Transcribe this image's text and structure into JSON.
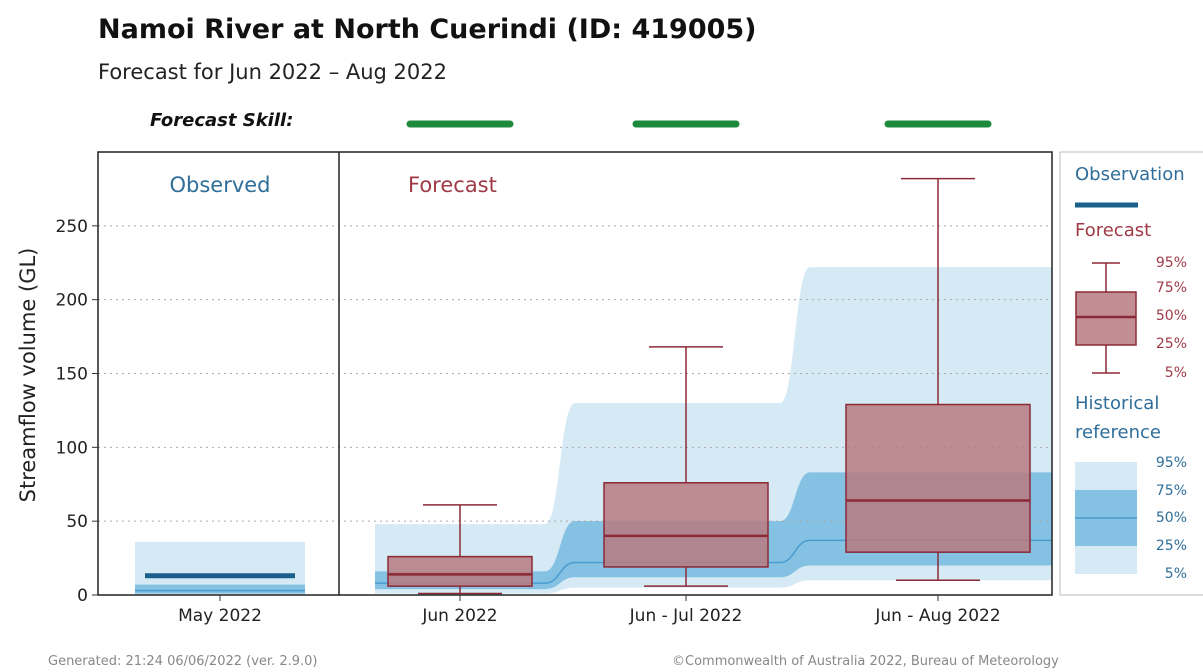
{
  "header": {
    "title": "Namoi River at North Cuerindi (ID: 419005)",
    "subtitle": "Forecast for Jun 2022 – Aug 2022",
    "skill_label": "Forecast Skill:"
  },
  "footer": {
    "generated": "Generated: 21:24 06/06/2022 (ver. 2.9.0)",
    "copyright": "©Commonwealth of Australia 2022, Bureau of Meteorology"
  },
  "colors": {
    "skill": "#1e8a3c",
    "observation": "#1b5f8c",
    "forecast_fill": "#b97a80",
    "forecast_stroke": "#8b2a36",
    "hist_light": "#d6eaf5",
    "hist_mid": "#84c1e3",
    "hist_line": "#4a9ccf",
    "label_blue": "#2f6e9a",
    "label_red": "#9e3a46"
  },
  "chart_data": {
    "type": "box",
    "ylabel": "Streamflow volume (GL)",
    "ylim": [
      0,
      300
    ],
    "yticks": [
      0,
      50,
      100,
      150,
      200,
      250
    ],
    "grid": "horizontal dotted",
    "panel_labels": {
      "observed": "Observed",
      "forecast": "Forecast"
    },
    "categories": [
      "May 2022",
      "Jun 2022",
      "Jun - Jul 2022",
      "Jun - Aug 2022"
    ],
    "observed": {
      "category": "May 2022",
      "value": 13,
      "historical": {
        "p5": 0,
        "p25": 1,
        "p50": 3,
        "p75": 7,
        "p95": 36
      }
    },
    "forecast": [
      {
        "category": "Jun 2022",
        "skill": "good",
        "p5": 1,
        "p25": 6,
        "p50": 14,
        "p75": 26,
        "p95": 61
      },
      {
        "category": "Jun - Jul 2022",
        "skill": "good",
        "p5": 6,
        "p25": 19,
        "p50": 40,
        "p75": 76,
        "p95": 168
      },
      {
        "category": "Jun - Aug 2022",
        "skill": "good",
        "p5": 10,
        "p25": 29,
        "p50": 64,
        "p75": 129,
        "p95": 282
      }
    ],
    "historical_reference": [
      {
        "category": "Jun 2022",
        "p5": 1,
        "p25": 4,
        "p50": 8,
        "p75": 16,
        "p95": 48
      },
      {
        "category": "Jun - Jul 2022",
        "p5": 5,
        "p25": 12,
        "p50": 22,
        "p75": 50,
        "p95": 130
      },
      {
        "category": "Jun - Aug 2022",
        "p5": 10,
        "p25": 20,
        "p50": 37,
        "p75": 83,
        "p95": 222
      }
    ],
    "legend": {
      "placement": "right",
      "observation": "Observation",
      "forecast": "Forecast",
      "historical_line1": "Historical",
      "historical_line2": "reference",
      "percentiles": [
        "95%",
        "75%",
        "50%",
        "25%",
        "5%"
      ]
    }
  }
}
